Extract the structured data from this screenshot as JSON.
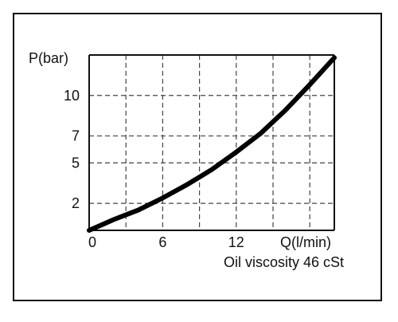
{
  "chart_data": {
    "type": "line",
    "ylabel": "P(bar)",
    "xlabel": "Q(l/min)",
    "note": "Oil viscosity 46 cSt",
    "x_ticks": [
      "0",
      "6",
      "12"
    ],
    "y_ticks": [
      "2",
      "5",
      "7",
      "10"
    ],
    "xlim": [
      0,
      20
    ],
    "ylim": [
      0,
      13
    ],
    "grid": true,
    "line_color": "#000000",
    "series": [
      {
        "x": [
          0,
          2,
          4,
          6,
          8,
          10,
          12,
          14,
          16,
          18,
          20
        ],
        "y": [
          0,
          0.8,
          1.5,
          2.4,
          3.4,
          4.5,
          5.8,
          7.2,
          8.9,
          10.8,
          12.8
        ]
      }
    ]
  }
}
